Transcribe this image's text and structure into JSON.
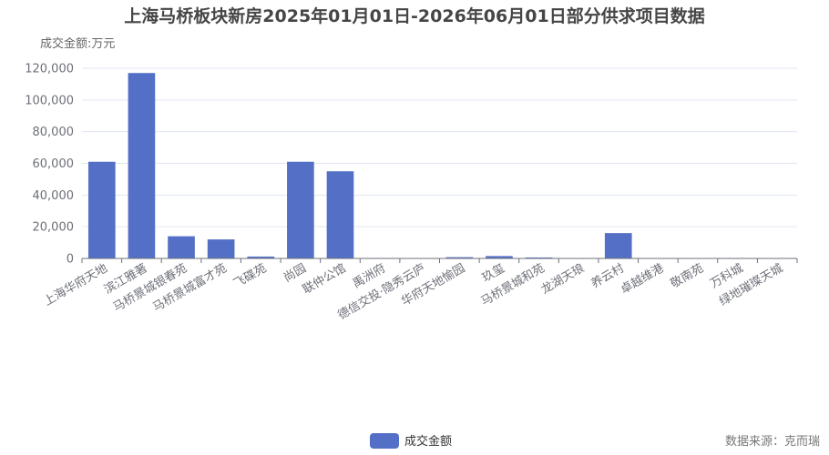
{
  "chart_data": {
    "type": "bar",
    "title": "上海马桥板块新房2025年01月01日-2026年06月01日部分供求项目数据",
    "ylabel": "成交金额:万元",
    "xlabel": "",
    "ylim": [
      0,
      120000
    ],
    "yticks": [
      "0",
      "20,000",
      "40,000",
      "60,000",
      "80,000",
      "100,000",
      "120,000"
    ],
    "grid": true,
    "legend_position": "bottom-center",
    "categories": [
      "上海华府天地",
      "滨江雅著",
      "马桥景城银春苑",
      "马桥景城富才苑",
      "飞碟苑",
      "尚园",
      "联仲公馆",
      "禹洲府",
      "德信交投·隐秀云庐",
      "华府天地愉园",
      "玖玺",
      "马桥景城和苑",
      "龙湖天琅",
      "养云村",
      "卓越维港",
      "敬南苑",
      "万科城",
      "绿地璀璨天城"
    ],
    "series": [
      {
        "name": "成交金额",
        "color": "#5470c6",
        "values": [
          61000,
          117000,
          14000,
          12000,
          1200,
          61000,
          55000,
          300,
          100,
          800,
          1500,
          600,
          100,
          16000,
          150,
          100,
          300,
          200
        ]
      }
    ]
  },
  "source_text": "数据来源：克而瑞"
}
